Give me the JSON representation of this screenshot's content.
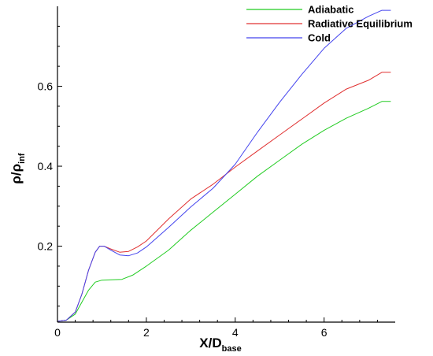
{
  "chart_data": {
    "type": "line",
    "xlabel_main": "X/D",
    "xlabel_sub": "base",
    "ylabel_main": "ρ/ρ",
    "ylabel_sub": "inf",
    "xlim": [
      0,
      7.6
    ],
    "ylim": [
      0.01,
      0.8
    ],
    "xticks": [
      0,
      2,
      4,
      6
    ],
    "yticks": [
      0.2,
      0.4,
      0.6
    ],
    "xtick_labels": [
      "0",
      "2",
      "4",
      "6"
    ],
    "ytick_labels": [
      "0.2",
      "0.4",
      "0.6"
    ],
    "grid": false,
    "legend_position": "top-right",
    "series": [
      {
        "name": "Adiabatic",
        "color": "#22cc22",
        "points": [
          [
            0,
            0.012
          ],
          [
            0.2,
            0.015
          ],
          [
            0.4,
            0.03
          ],
          [
            0.55,
            0.06
          ],
          [
            0.7,
            0.09
          ],
          [
            0.85,
            0.11
          ],
          [
            1.0,
            0.115
          ],
          [
            1.2,
            0.116
          ],
          [
            1.45,
            0.117
          ],
          [
            1.7,
            0.128
          ],
          [
            2.0,
            0.15
          ],
          [
            2.5,
            0.19
          ],
          [
            3.0,
            0.24
          ],
          [
            3.5,
            0.285
          ],
          [
            4.0,
            0.33
          ],
          [
            4.5,
            0.375
          ],
          [
            5.0,
            0.415
          ],
          [
            5.5,
            0.455
          ],
          [
            6.0,
            0.49
          ],
          [
            6.5,
            0.52
          ],
          [
            7.0,
            0.545
          ],
          [
            7.3,
            0.562
          ],
          [
            7.5,
            0.562
          ]
        ]
      },
      {
        "name": "Radiative Equilibrium",
        "color": "#e03030",
        "points": [
          [
            0,
            0.012
          ],
          [
            0.2,
            0.015
          ],
          [
            0.4,
            0.035
          ],
          [
            0.55,
            0.08
          ],
          [
            0.7,
            0.14
          ],
          [
            0.85,
            0.185
          ],
          [
            0.95,
            0.2
          ],
          [
            1.05,
            0.2
          ],
          [
            1.2,
            0.193
          ],
          [
            1.4,
            0.185
          ],
          [
            1.6,
            0.187
          ],
          [
            1.8,
            0.198
          ],
          [
            2.0,
            0.213
          ],
          [
            2.5,
            0.268
          ],
          [
            3.0,
            0.318
          ],
          [
            3.5,
            0.355
          ],
          [
            4.0,
            0.398
          ],
          [
            4.5,
            0.438
          ],
          [
            5.0,
            0.478
          ],
          [
            5.5,
            0.518
          ],
          [
            6.0,
            0.558
          ],
          [
            6.5,
            0.593
          ],
          [
            7.0,
            0.615
          ],
          [
            7.3,
            0.635
          ],
          [
            7.5,
            0.635
          ]
        ]
      },
      {
        "name": "Cold",
        "color": "#4444ee",
        "points": [
          [
            0,
            0.012
          ],
          [
            0.2,
            0.015
          ],
          [
            0.4,
            0.035
          ],
          [
            0.55,
            0.08
          ],
          [
            0.7,
            0.14
          ],
          [
            0.85,
            0.185
          ],
          [
            0.95,
            0.2
          ],
          [
            1.05,
            0.2
          ],
          [
            1.2,
            0.19
          ],
          [
            1.4,
            0.178
          ],
          [
            1.6,
            0.176
          ],
          [
            1.8,
            0.183
          ],
          [
            2.0,
            0.198
          ],
          [
            2.5,
            0.247
          ],
          [
            3.0,
            0.298
          ],
          [
            3.5,
            0.345
          ],
          [
            4.0,
            0.405
          ],
          [
            4.5,
            0.485
          ],
          [
            5.0,
            0.56
          ],
          [
            5.5,
            0.63
          ],
          [
            6.0,
            0.695
          ],
          [
            6.5,
            0.745
          ],
          [
            7.0,
            0.775
          ],
          [
            7.3,
            0.79
          ],
          [
            7.5,
            0.79
          ]
        ]
      }
    ]
  }
}
